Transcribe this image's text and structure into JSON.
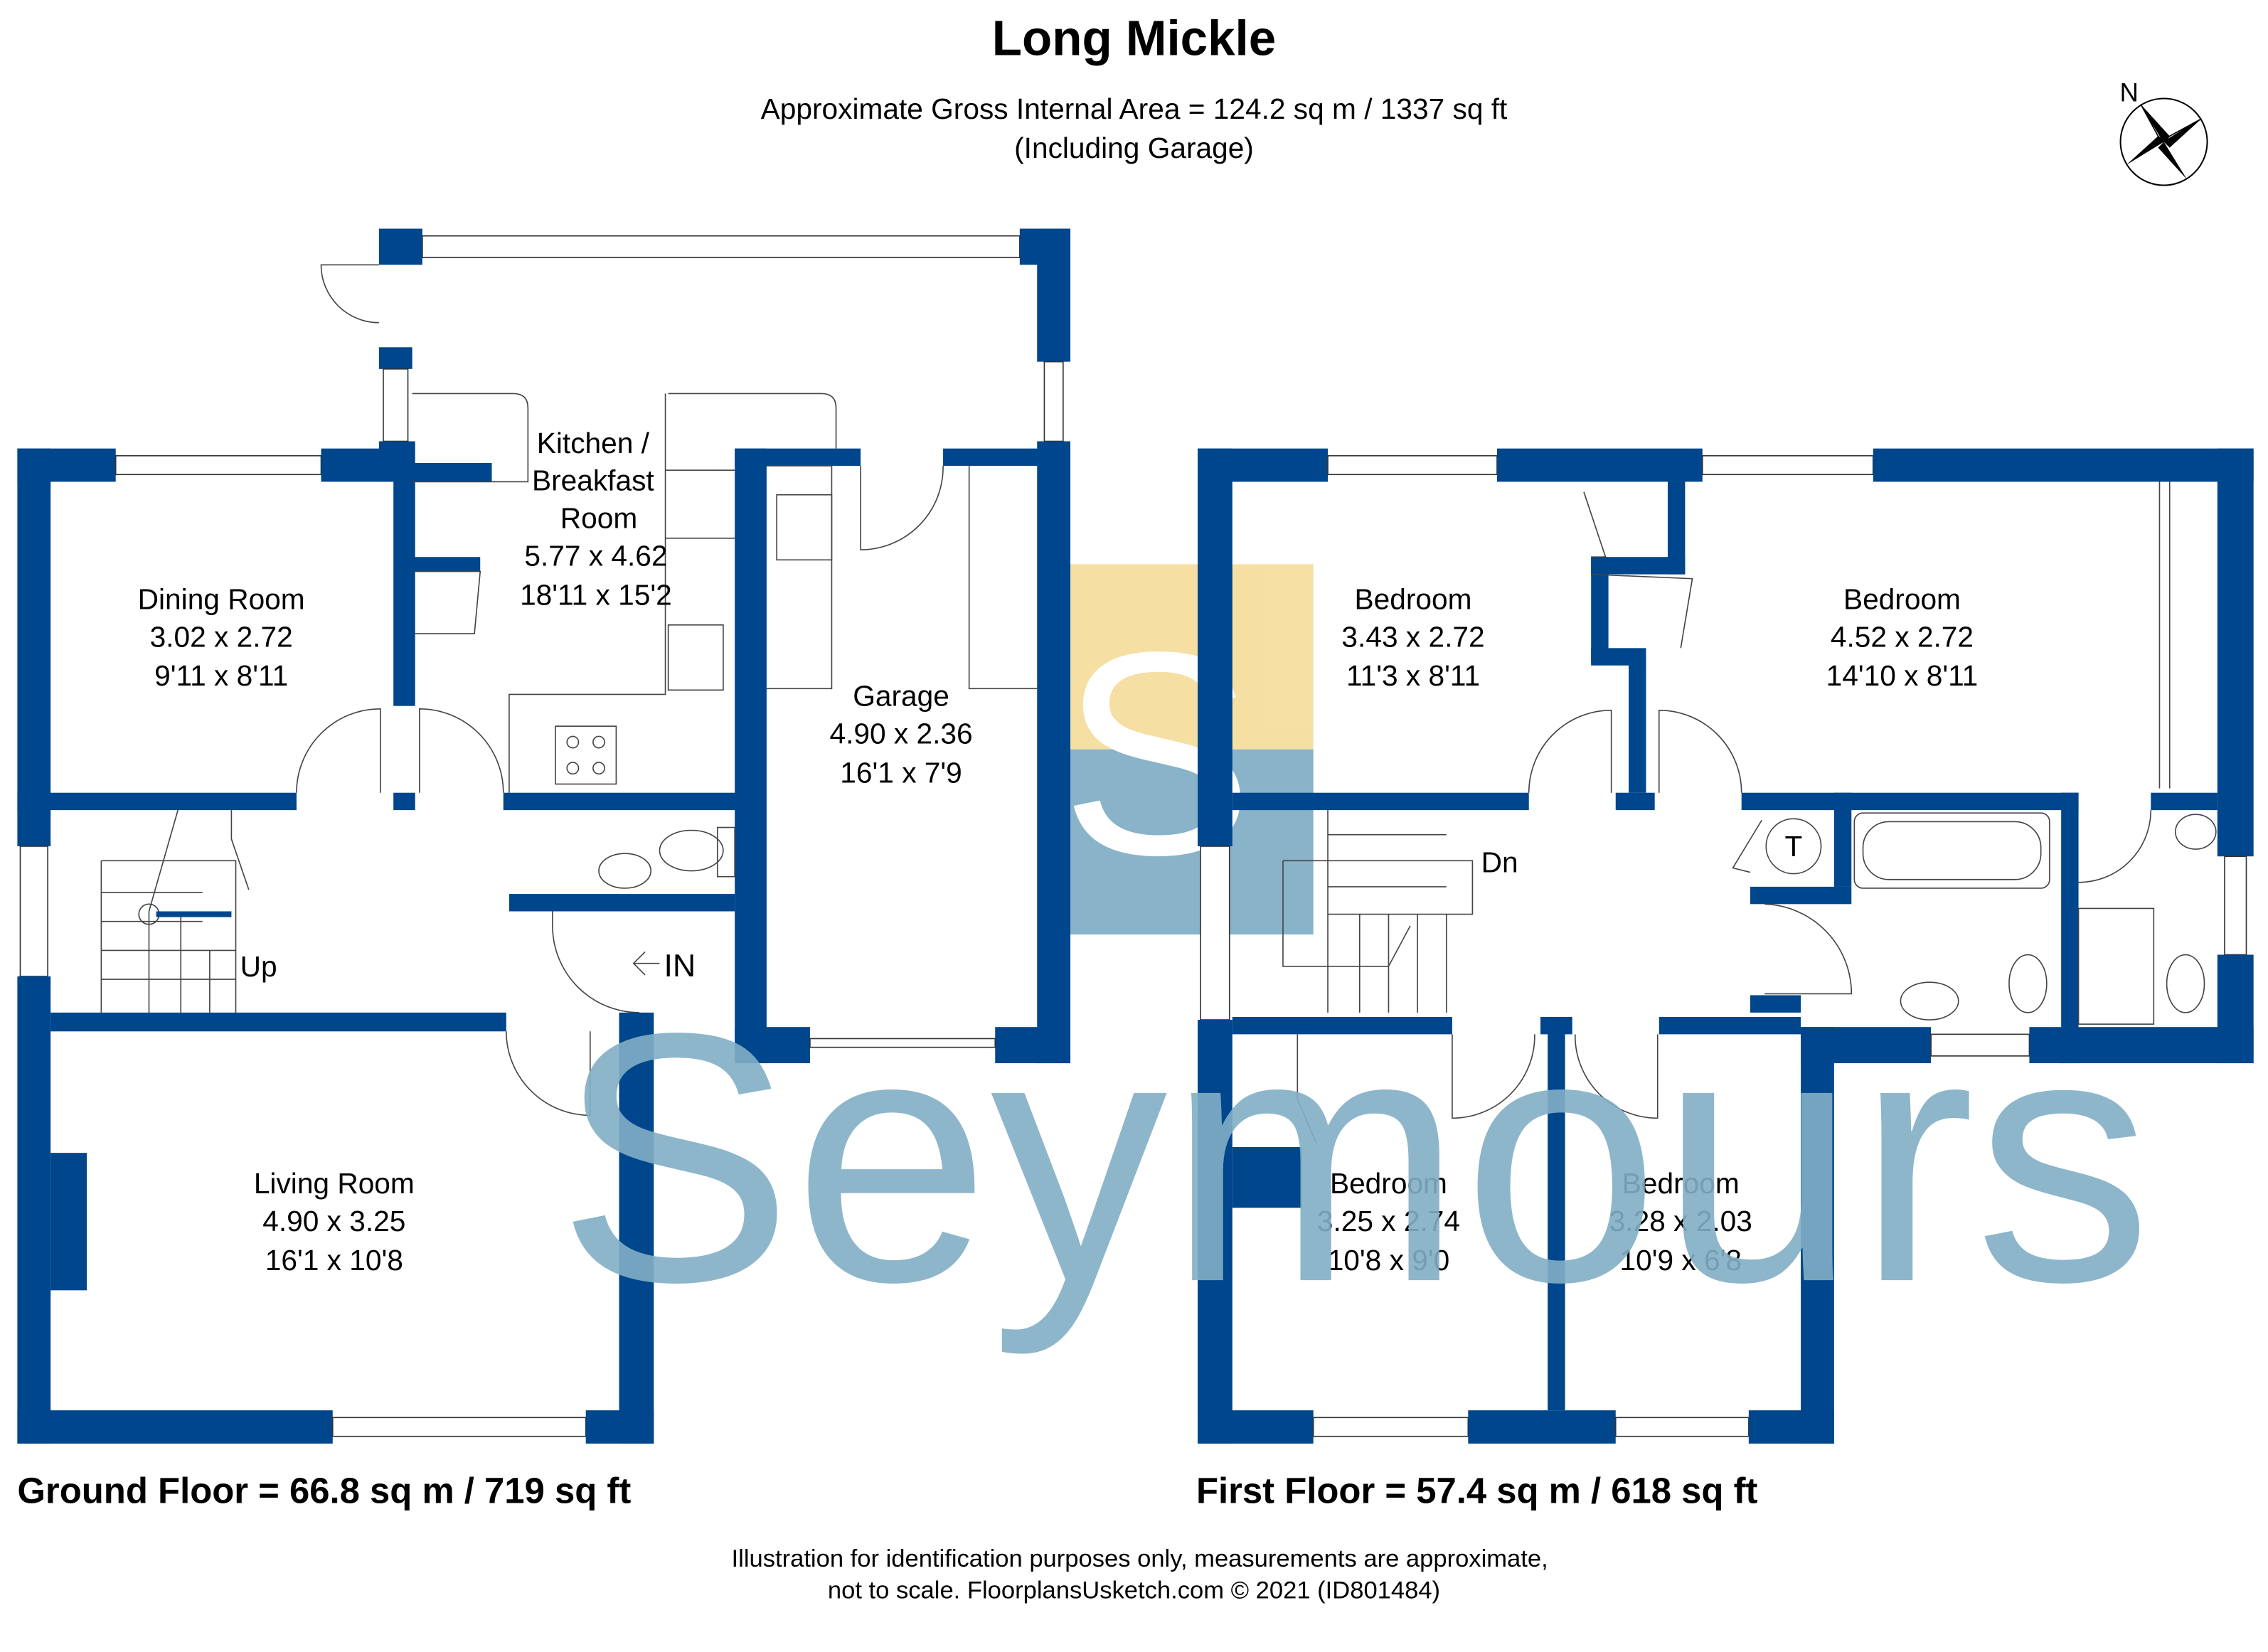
{
  "header": {
    "title": "Long Mickle",
    "subtitle": "Approximate Gross Internal Area = 124.2 sq m / 1337 sq ft",
    "subtitle_note": "(Including Garage)"
  },
  "compass": {
    "north_label": "N"
  },
  "ground_floor": {
    "label": "Ground Floor = 66.8 sq m / 719 sq ft",
    "rooms": [
      {
        "name": "Dining Room",
        "metric": "3.02 x 2.72",
        "imperial": "9'11 x 8'11"
      },
      {
        "name_lines": [
          "Kitchen /",
          "Breakfast",
          "Room"
        ],
        "metric": "5.77 x 4.62",
        "imperial": "18'11 x 15'2"
      },
      {
        "name": "Garage",
        "metric": "4.90 x 2.36",
        "imperial": "16'1 x 7'9"
      },
      {
        "name": "Living Room",
        "metric": "4.90 x 3.25",
        "imperial": "16'1 x 10'8"
      }
    ],
    "stairs_label": "Up",
    "entrance_label": "IN"
  },
  "first_floor": {
    "label": "First Floor = 57.4 sq m / 618 sq ft",
    "rooms": [
      {
        "name": "Bedroom",
        "metric": "3.43 x 2.72",
        "imperial": "11'3 x 8'11"
      },
      {
        "name": "Bedroom",
        "metric": "4.52 x 2.72",
        "imperial": "14'10 x 8'11"
      },
      {
        "name": "Bedroom",
        "metric": "3.25 x 2.74",
        "imperial": "10'8 x 9'0"
      },
      {
        "name": "Bedroom",
        "metric": "3.28 x 2.03",
        "imperial": "10'9 x 6'8"
      }
    ],
    "stairs_label": "Dn",
    "tank_label": "T"
  },
  "watermark": {
    "text": "Seymours",
    "logo_letter": "S"
  },
  "footer": {
    "line1": "Illustration for identification purposes only, measurements are approximate,",
    "line2": "not to scale. FloorplansUsketch.com © 2021 (ID801484)"
  },
  "colors": {
    "wall": "#00468c",
    "logo_yellow": "#f6de9e",
    "logo_blue": "#82afc6"
  }
}
